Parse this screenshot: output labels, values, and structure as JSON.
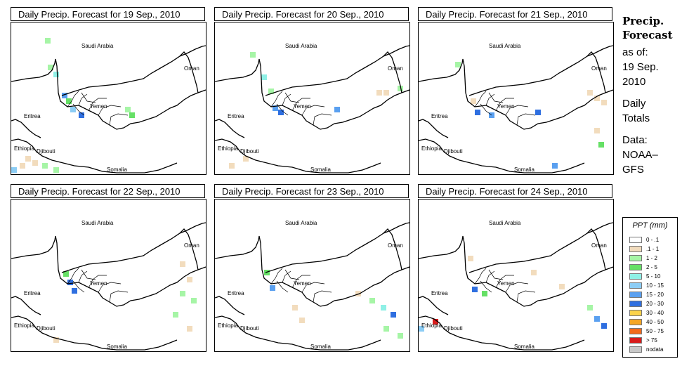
{
  "panels": [
    {
      "title": "Daily Precip. Forecast for  19 Sep., 2010"
    },
    {
      "title": "Daily Precip. Forecast for  20 Sep., 2010"
    },
    {
      "title": "Daily Precip. Forecast for  21 Sep., 2010"
    },
    {
      "title": "Daily Precip. Forecast for  22 Sep., 2010"
    },
    {
      "title": "Daily Precip. Forecast for  23 Sep., 2010"
    },
    {
      "title": "Daily Precip. Forecast for  24 Sep., 2010"
    }
  ],
  "map_labels": {
    "saudi_arabia": "Saudi Arabia",
    "oman": "Oman",
    "yemen": "Yemen",
    "eritrea": "Eritrea",
    "ethiopia": "Ethiopia",
    "djibouti": "Djibouti",
    "somalia": "Somalia"
  },
  "side": {
    "line1": "Precip.",
    "line2": "Forecast",
    "line3": "as of:",
    "line4": "19 Sep.",
    "line5": "2010",
    "line6": "Daily",
    "line7": "Totals",
    "line8": "Data:",
    "line9": "NOAA–",
    "line10": "GFS"
  },
  "legend": {
    "title": "PPT (mm)",
    "items": [
      {
        "label": "0 - .1",
        "color": "#ffffff"
      },
      {
        "label": ".1 - 1",
        "color": "#f2dcbd"
      },
      {
        "label": "1 - 2",
        "color": "#a6f5a6"
      },
      {
        "label": "2 - 5",
        "color": "#66e066"
      },
      {
        "label": "5 - 10",
        "color": "#8ff0e6"
      },
      {
        "label": "10 - 15",
        "color": "#8ccdf5"
      },
      {
        "label": "15 - 20",
        "color": "#5aa0f0"
      },
      {
        "label": "20 - 30",
        "color": "#2f6fe0"
      },
      {
        "label": "30 - 40",
        "color": "#fbd34b"
      },
      {
        "label": "40 - 50",
        "color": "#f5a623"
      },
      {
        "label": "50 - 75",
        "color": "#f26a1b"
      },
      {
        "label": "> 75",
        "color": "#d81b1b"
      },
      {
        "label": "nodata",
        "color": "#c8c8c8"
      }
    ]
  }
}
